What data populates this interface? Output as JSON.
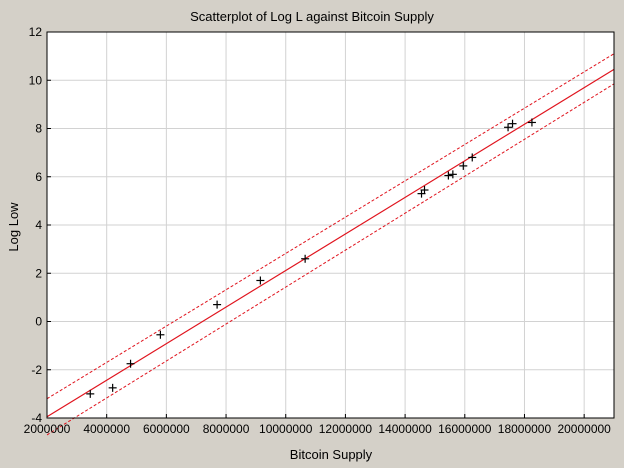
{
  "chart_data": {
    "type": "scatter",
    "title": "Scatterplot of Log L against Bitcoin Supply",
    "xlabel": "Bitcoin Supply",
    "ylabel": "Log Low",
    "xlim": [
      2000000,
      21000000
    ],
    "ylim": [
      -4,
      12
    ],
    "xticks": [
      2000000,
      4000000,
      6000000,
      8000000,
      10000000,
      12000000,
      14000000,
      16000000,
      18000000,
      20000000
    ],
    "xtick_labels": [
      "2000000",
      "4000000",
      "6000000",
      "8000000",
      "10000000",
      "12000000",
      "14000000",
      "16000000",
      "18000000",
      "20000000"
    ],
    "yticks": [
      -4,
      -2,
      0,
      2,
      4,
      6,
      8,
      10,
      12
    ],
    "ytick_labels": [
      "-4",
      "-2",
      "0",
      "2",
      "4",
      "6",
      "8",
      "10",
      "12"
    ],
    "grid": true,
    "marker": "plus",
    "points": [
      {
        "x": 3450000,
        "y": -3.0
      },
      {
        "x": 4200000,
        "y": -2.75
      },
      {
        "x": 4800000,
        "y": -1.75
      },
      {
        "x": 5800000,
        "y": -0.55
      },
      {
        "x": 7700000,
        "y": 0.7
      },
      {
        "x": 9150000,
        "y": 1.7
      },
      {
        "x": 10650000,
        "y": 2.6
      },
      {
        "x": 14550000,
        "y": 5.3
      },
      {
        "x": 14650000,
        "y": 5.45
      },
      {
        "x": 15450000,
        "y": 6.05
      },
      {
        "x": 15600000,
        "y": 6.1
      },
      {
        "x": 15950000,
        "y": 6.45
      },
      {
        "x": 16250000,
        "y": 6.8
      },
      {
        "x": 17450000,
        "y": 8.05
      },
      {
        "x": 17600000,
        "y": 8.2
      },
      {
        "x": 18250000,
        "y": 8.25
      }
    ],
    "fit_line": {
      "color": "#e0141e",
      "x": [
        2000000,
        21000000
      ],
      "y": [
        -3.95,
        10.45
      ]
    },
    "confidence_bands": {
      "color": "#e0141e",
      "style": "dashed",
      "upper": {
        "x": [
          2000000,
          21000000
        ],
        "y": [
          -3.2,
          11.1
        ]
      },
      "lower": {
        "x": [
          2000000,
          21000000
        ],
        "y": [
          -4.7,
          9.85
        ]
      }
    }
  }
}
